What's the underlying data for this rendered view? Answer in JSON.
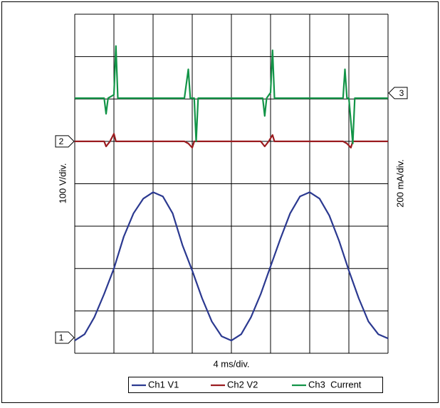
{
  "chart_data": {
    "type": "line",
    "x_label": "4 ms/div.",
    "y_label": "100 V/div.",
    "y2_label": "200 mA/div.",
    "xlim": [
      0,
      8
    ],
    "ylim": [
      0,
      8
    ],
    "xticks": [
      0,
      1,
      2,
      3,
      4,
      5,
      6,
      7,
      8
    ],
    "yticks": [
      0,
      1,
      2,
      3,
      4,
      5,
      6,
      7,
      8
    ],
    "grid": true,
    "series": [
      {
        "name": "Ch1 V1",
        "color": "#2b3990",
        "marker": "1",
        "marker_side": "left",
        "level": 0.37,
        "x": [
          0,
          0.25,
          0.5,
          0.75,
          1,
          1.25,
          1.5,
          1.75,
          2,
          2.25,
          2.5,
          2.75,
          3,
          3.25,
          3.5,
          3.75,
          4,
          4.25,
          4.5,
          4.75,
          5,
          5.25,
          5.5,
          5.75,
          6,
          6.25,
          6.5,
          6.75,
          7,
          7.25,
          7.5,
          7.75,
          8
        ],
        "values": [
          0.3,
          0.45,
          0.85,
          1.4,
          2.0,
          2.75,
          3.3,
          3.65,
          3.8,
          3.7,
          3.3,
          2.55,
          1.95,
          1.3,
          0.75,
          0.4,
          0.3,
          0.45,
          0.85,
          1.4,
          2.05,
          2.7,
          3.3,
          3.7,
          3.8,
          3.65,
          3.25,
          2.65,
          1.95,
          1.3,
          0.75,
          0.45,
          0.35
        ]
      },
      {
        "name": "Ch2 V2",
        "color": "#9b1c20",
        "marker": "2",
        "marker_side": "left",
        "level": 5.0,
        "x": [
          0,
          0.75,
          0.8,
          0.9,
          1.0,
          1.05,
          2.8,
          2.9,
          3.0,
          3.05,
          4.75,
          4.85,
          4.95,
          5.05,
          5.1,
          6.85,
          6.95,
          7.05,
          7.1,
          8
        ],
        "values": [
          5.0,
          5.0,
          4.88,
          5.0,
          5.18,
          5.0,
          5.0,
          4.95,
          4.85,
          5.0,
          5.0,
          4.88,
          5.0,
          5.15,
          5.0,
          5.0,
          4.95,
          4.85,
          5.0,
          5.0
        ]
      },
      {
        "name": "Ch3  Current",
        "color": "#129447",
        "marker": "3",
        "marker_side": "right",
        "level": 6.14,
        "x": [
          0,
          0.75,
          0.8,
          0.85,
          1.0,
          1.05,
          1.1,
          2.8,
          2.9,
          2.95,
          3.05,
          3.1,
          3.15,
          4.8,
          4.85,
          4.9,
          5.0,
          5.05,
          5.1,
          6.85,
          6.9,
          6.95,
          7.0,
          7.1,
          7.15,
          8
        ],
        "values": [
          6.02,
          6.02,
          5.65,
          6.02,
          6.1,
          7.25,
          6.02,
          6.02,
          6.7,
          6.02,
          6.02,
          5.0,
          6.02,
          6.02,
          5.6,
          6.02,
          6.15,
          7.15,
          6.02,
          6.02,
          6.7,
          6.02,
          6.02,
          4.95,
          6.02,
          6.02
        ]
      }
    ]
  }
}
